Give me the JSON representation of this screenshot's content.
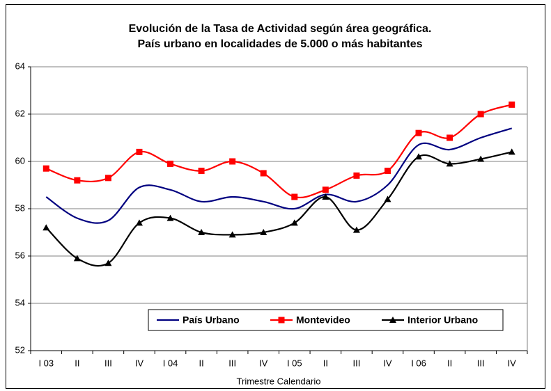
{
  "chart_data": {
    "type": "line",
    "title": [
      "Evolución de la Tasa de Actividad según área geográfica.",
      "País urbano en localidades de 5.000 o más habitantes"
    ],
    "xlabel": "Trimestre Calendario",
    "categories": [
      "I 03",
      "II",
      "III",
      "IV",
      "I 04",
      "II",
      "III",
      "IV",
      "I 05",
      "II",
      "III",
      "IV",
      "I 06",
      "II",
      "III",
      "IV"
    ],
    "series": [
      {
        "name": "País Urbano",
        "color": "#000080",
        "marker": "none",
        "values": [
          58.5,
          57.6,
          57.5,
          58.9,
          58.8,
          58.3,
          58.5,
          58.3,
          58.0,
          58.6,
          58.3,
          59.0,
          60.7,
          60.5,
          61.0,
          61.4
        ]
      },
      {
        "name": "Montevideo",
        "color": "#ff0000",
        "marker": "square",
        "values": [
          59.7,
          59.2,
          59.3,
          60.4,
          59.9,
          59.6,
          60.0,
          59.5,
          58.5,
          58.8,
          59.4,
          59.6,
          61.2,
          61.0,
          62.0,
          62.4
        ]
      },
      {
        "name": "Interior Urbano",
        "color": "#000000",
        "marker": "triangle",
        "values": [
          57.2,
          55.9,
          55.7,
          57.4,
          57.6,
          57.0,
          56.9,
          57.0,
          57.4,
          58.5,
          57.1,
          58.4,
          60.2,
          59.9,
          60.1,
          60.4
        ]
      }
    ],
    "ylim": [
      52,
      64
    ],
    "yticks": [
      52,
      54,
      56,
      58,
      60,
      62,
      64
    ],
    "grid": true,
    "smooth": true,
    "legend": "lower center"
  }
}
